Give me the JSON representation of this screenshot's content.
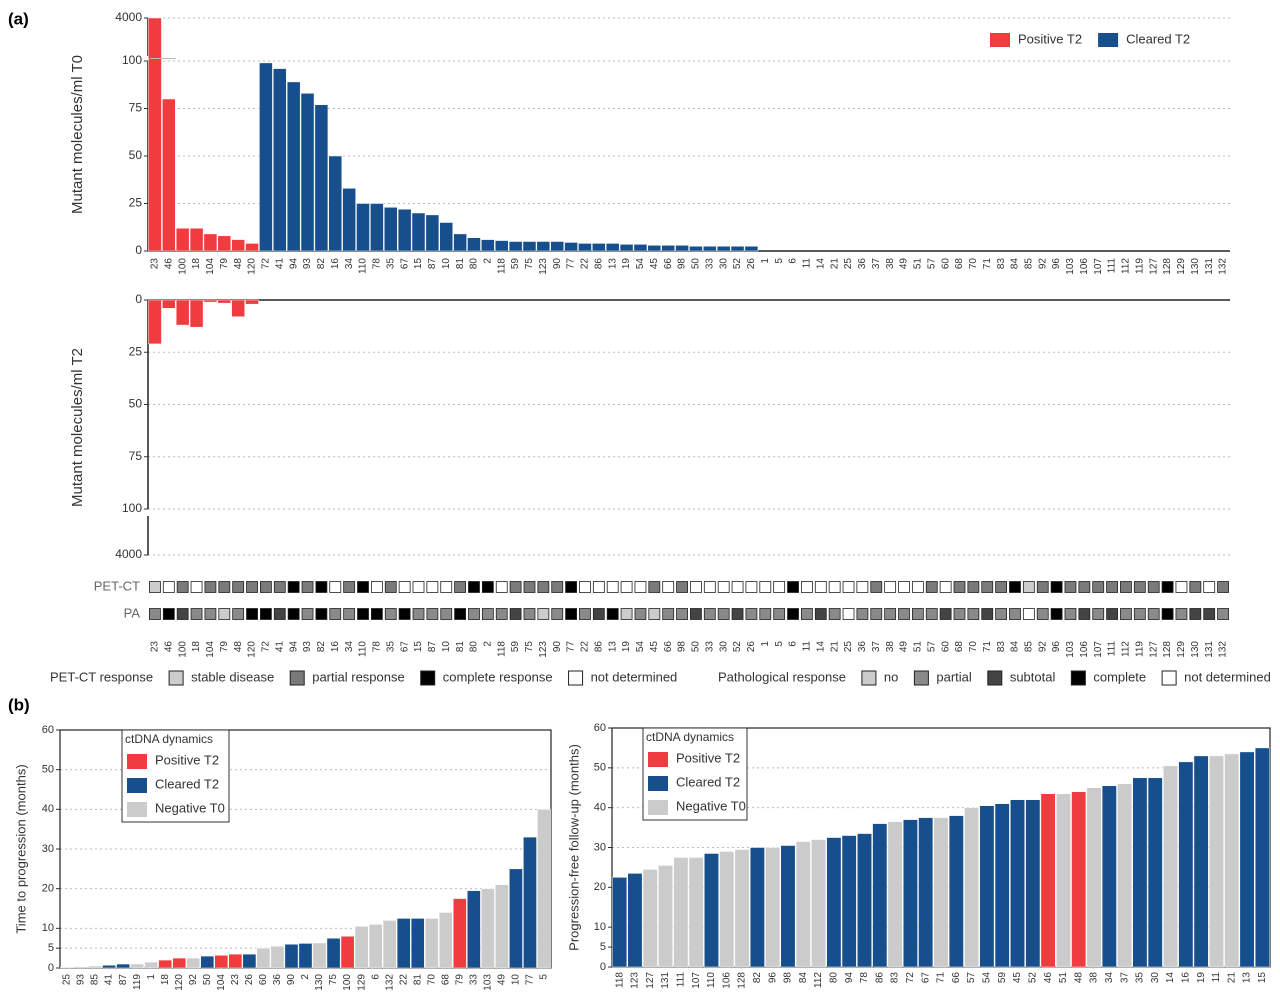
{
  "panel_labels": [
    "(a)",
    "(b)"
  ],
  "chart_data": [
    {
      "type": "bar",
      "ylabel": "Mutant molecules/ml T0",
      "categories": [
        "23",
        "46",
        "100",
        "18",
        "104",
        "79",
        "48",
        "120",
        "72",
        "41",
        "94",
        "93",
        "82",
        "16",
        "34",
        "110",
        "78",
        "35",
        "67",
        "15",
        "87",
        "10",
        "81",
        "80",
        "2",
        "118",
        "59",
        "75",
        "123",
        "90",
        "77",
        "22",
        "86",
        "13",
        "19",
        "54",
        "45",
        "66",
        "98",
        "50",
        "33",
        "30",
        "52",
        "26",
        "1",
        "5",
        "6",
        "11",
        "14",
        "21",
        "25",
        "36",
        "37",
        "38",
        "49",
        "51",
        "57",
        "60",
        "68",
        "70",
        "71",
        "83",
        "84",
        "85",
        "92",
        "96",
        "103",
        "106",
        "107",
        "111",
        "112",
        "119",
        "127",
        "128",
        "129",
        "130",
        "131",
        "132"
      ],
      "series": [
        {
          "name": "Positive T2",
          "color": "#f03c3e",
          "values": [
            4000,
            80,
            12,
            12,
            9,
            8,
            6,
            4,
            null,
            null,
            null,
            null,
            null,
            null,
            null,
            null,
            null,
            null,
            null,
            null,
            null,
            null,
            null,
            null,
            null,
            null,
            null,
            null,
            null,
            null,
            null,
            null,
            null,
            null,
            null,
            null,
            null,
            null,
            null,
            null,
            null,
            null,
            null,
            null,
            null,
            null,
            null,
            null,
            null,
            null,
            null,
            null,
            null,
            null,
            null,
            null,
            null,
            null,
            null,
            null,
            null,
            null,
            null,
            null,
            null,
            null,
            null,
            null,
            null,
            null,
            null,
            null,
            null,
            null,
            null,
            null,
            null,
            null
          ]
        },
        {
          "name": "Cleared T2",
          "color": "#174f8d",
          "values": [
            null,
            null,
            null,
            null,
            null,
            null,
            null,
            null,
            99,
            96,
            89,
            83,
            77,
            50,
            33,
            25,
            25,
            23,
            22,
            20,
            19,
            15,
            9,
            7,
            6,
            5.5,
            5,
            5,
            5,
            5,
            4.5,
            4,
            4,
            4,
            3.5,
            3.5,
            3,
            3,
            3,
            2.5,
            2.5,
            2.5,
            2.5,
            2.5,
            null,
            null,
            null,
            null,
            null,
            null,
            null,
            null,
            null,
            null,
            null,
            null,
            null,
            null,
            null,
            null,
            null,
            null,
            null,
            null,
            null,
            null,
            null,
            null,
            null,
            null,
            null,
            null,
            null,
            null,
            null,
            null,
            null,
            null
          ]
        }
      ],
      "ylim": [
        0,
        4000
      ],
      "yticks": [
        0,
        25,
        50,
        75,
        100,
        4000
      ],
      "broken_axis": true,
      "grid": true,
      "legend": "upper right"
    },
    {
      "type": "bar",
      "ylabel": "Mutant molecules/ml T2",
      "color": "#f03c3e",
      "inverted": true,
      "values": [
        21,
        4,
        12,
        13,
        1,
        1.5,
        8,
        2,
        0,
        0,
        0,
        0,
        0,
        0,
        0,
        0,
        0,
        0,
        0,
        0,
        0,
        0,
        0,
        0,
        0,
        0,
        0,
        0,
        0,
        0,
        0,
        0,
        0,
        0,
        0,
        0,
        0,
        0,
        0,
        0,
        0,
        0,
        0,
        0,
        null,
        null,
        null,
        null,
        null,
        null,
        null,
        null,
        null,
        null,
        null,
        null,
        null,
        null,
        null,
        null,
        null,
        null,
        null,
        null,
        null,
        null,
        null,
        null,
        null,
        null,
        null,
        null,
        null,
        null,
        null,
        null,
        null,
        null
      ],
      "ylim": [
        0,
        4000
      ],
      "yticks": [
        0,
        25,
        50,
        75,
        100,
        4000
      ],
      "broken_axis": true,
      "grid": true
    },
    {
      "type": "heatmap",
      "categories": [
        "23",
        "46",
        "100",
        "18",
        "104",
        "79",
        "48",
        "120",
        "72",
        "41",
        "94",
        "93",
        "82",
        "16",
        "34",
        "110",
        "78",
        "35",
        "67",
        "15",
        "87",
        "10",
        "81",
        "80",
        "2",
        "118",
        "59",
        "75",
        "123",
        "90",
        "77",
        "22",
        "86",
        "13",
        "19",
        "54",
        "45",
        "66",
        "98",
        "50",
        "33",
        "30",
        "52",
        "26",
        "1",
        "5",
        "6",
        "11",
        "14",
        "21",
        "25",
        "36",
        "37",
        "38",
        "49",
        "51",
        "57",
        "60",
        "68",
        "70",
        "71",
        "83",
        "84",
        "85",
        "92",
        "96",
        "103",
        "106",
        "107",
        "111",
        "112",
        "119",
        "127",
        "128",
        "129",
        "130",
        "131",
        "132"
      ],
      "rows": [
        {
          "name": "PET-CT",
          "legend": 0,
          "values": [
            "stable disease",
            "not determined",
            "partial response",
            "not determined",
            "partial response",
            "partial response",
            "partial response",
            "partial response",
            "partial response",
            "partial response",
            "complete response",
            "partial response",
            "complete response",
            "not determined",
            "partial response",
            "complete response",
            "not determined",
            "partial response",
            "not determined",
            "not determined",
            "not determined",
            "not determined",
            "partial response",
            "complete response",
            "complete response",
            "not determined",
            "partial response",
            "partial response",
            "partial response",
            "partial response",
            "complete response",
            "not determined",
            "not determined",
            "not determined",
            "not determined",
            "not determined",
            "partial response",
            "not determined",
            "partial response",
            "not determined",
            "not determined",
            "not determined",
            "not determined",
            "not determined",
            "not determined",
            "not determined",
            "complete response",
            "not determined",
            "not determined",
            "not determined",
            "not determined",
            "not determined",
            "partial response",
            "not determined",
            "not determined",
            "not determined",
            "partial response",
            "not determined",
            "partial response",
            "partial response",
            "partial response",
            "partial response",
            "complete response",
            "stable disease",
            "partial response",
            "complete response",
            "partial response",
            "partial response",
            "partial response",
            "partial response",
            "partial response",
            "partial response",
            "partial response",
            "complete response",
            "not determined",
            "partial response",
            "not determined",
            "partial response"
          ]
        },
        {
          "name": "PA",
          "legend": 1,
          "values": [
            "partial",
            "complete",
            "subtotal",
            "partial",
            "partial",
            "no",
            "partial",
            "complete",
            "complete",
            "subtotal",
            "complete",
            "partial",
            "complete",
            "partial",
            "partial",
            "complete",
            "complete",
            "partial",
            "complete",
            "partial",
            "partial",
            "partial",
            "complete",
            "partial",
            "partial",
            "partial",
            "subtotal",
            "partial",
            "no",
            "partial",
            "complete",
            "partial",
            "subtotal",
            "complete",
            "no",
            "partial",
            "no",
            "partial",
            "partial",
            "subtotal",
            "partial",
            "partial",
            "subtotal",
            "partial",
            "partial",
            "partial",
            "complete",
            "partial",
            "subtotal",
            "partial",
            "not determined",
            "partial",
            "partial",
            "partial",
            "partial",
            "partial",
            "partial",
            "subtotal",
            "partial",
            "partial",
            "subtotal",
            "partial",
            "partial",
            "not determined",
            "partial",
            "complete",
            "partial",
            "subtotal",
            "partial",
            "subtotal",
            "partial",
            "partial",
            "partial",
            "complete",
            "partial",
            "subtotal",
            "subtotal",
            "partial"
          ]
        }
      ],
      "legends": [
        {
          "title": "PET-CT response",
          "items": [
            {
              "label": "stable disease",
              "color": "#cccccc"
            },
            {
              "label": "partial response",
              "color": "#7a7a7a"
            },
            {
              "label": "complete response",
              "color": "#000000"
            },
            {
              "label": "not determined",
              "color": "#ffffff"
            }
          ]
        },
        {
          "title": "Pathological response",
          "items": [
            {
              "label": "no",
              "color": "#cccccc"
            },
            {
              "label": "partial",
              "color": "#8a8a8a"
            },
            {
              "label": "subtotal",
              "color": "#444444"
            },
            {
              "label": "complete",
              "color": "#000000"
            },
            {
              "label": "not determined",
              "color": "#ffffff"
            }
          ]
        }
      ]
    },
    {
      "type": "bar",
      "ylabel": "Time to progression (months)",
      "legend_title": "ctDNA dynamics",
      "legend": "upper left",
      "grid": true,
      "categories": [
        "25",
        "93",
        "85",
        "41",
        "87",
        "119",
        "1",
        "18",
        "120",
        "92",
        "50",
        "104",
        "23",
        "26",
        "60",
        "36",
        "90",
        "2",
        "130",
        "75",
        "100",
        "129",
        "6",
        "132",
        "22",
        "81",
        "70",
        "68",
        "79",
        "33",
        "103",
        "49",
        "10",
        "77",
        "5"
      ],
      "series": [
        {
          "name": "Positive T2",
          "color": "#f03c3e",
          "values": [
            null,
            null,
            null,
            null,
            null,
            null,
            null,
            2,
            2.5,
            null,
            null,
            3.2,
            3.5,
            null,
            null,
            null,
            null,
            null,
            null,
            null,
            8,
            null,
            null,
            null,
            null,
            null,
            null,
            null,
            17.5,
            null,
            null,
            null,
            null,
            null,
            null
          ]
        },
        {
          "name": "Cleared T2",
          "color": "#174f8d",
          "values": [
            null,
            null,
            null,
            0.7,
            1,
            null,
            null,
            null,
            null,
            null,
            3,
            null,
            null,
            3.5,
            null,
            null,
            6,
            6.2,
            null,
            7.5,
            null,
            null,
            null,
            null,
            12.5,
            12.5,
            null,
            null,
            null,
            19.5,
            null,
            null,
            25,
            33,
            null
          ]
        },
        {
          "name": "Negative T0",
          "color": "#cbcbcb",
          "values": [
            0.2,
            0.3,
            0.5,
            null,
            null,
            1,
            1.5,
            null,
            null,
            2.5,
            null,
            null,
            null,
            null,
            5,
            5.5,
            null,
            null,
            6.3,
            null,
            null,
            10.5,
            11,
            12,
            null,
            null,
            12.5,
            14,
            null,
            null,
            20,
            21,
            null,
            null,
            40
          ]
        }
      ],
      "ylim": [
        0,
        60
      ],
      "yticks": [
        0,
        5,
        10,
        20,
        30,
        40,
        50,
        60
      ]
    },
    {
      "type": "bar",
      "ylabel": "Progression-free follow-up (months)",
      "legend_title": "ctDNA dynamics",
      "legend": "upper left",
      "grid": true,
      "categories": [
        "118",
        "123",
        "127",
        "131",
        "111",
        "107",
        "110",
        "106",
        "128",
        "82",
        "96",
        "98",
        "84",
        "112",
        "80",
        "94",
        "78",
        "86",
        "83",
        "72",
        "67",
        "71",
        "66",
        "57",
        "54",
        "59",
        "45",
        "52",
        "46",
        "51",
        "48",
        "38",
        "34",
        "37",
        "35",
        "30",
        "14",
        "16",
        "19",
        "11",
        "21",
        "13",
        "15"
      ],
      "series": [
        {
          "name": "Positive T2",
          "color": "#f03c3e",
          "values": [
            null,
            null,
            null,
            null,
            null,
            null,
            null,
            null,
            null,
            null,
            null,
            null,
            null,
            null,
            null,
            null,
            null,
            null,
            null,
            null,
            null,
            null,
            null,
            null,
            null,
            null,
            null,
            null,
            43.5,
            null,
            44,
            null,
            null,
            null,
            null,
            null,
            null,
            null,
            null,
            null,
            null,
            null,
            null
          ]
        },
        {
          "name": "Cleared T2",
          "color": "#174f8d",
          "values": [
            22.5,
            23.5,
            null,
            null,
            null,
            null,
            28.5,
            null,
            null,
            30,
            null,
            30.5,
            null,
            null,
            32.5,
            33,
            33.5,
            36,
            null,
            37,
            37.5,
            null,
            38,
            null,
            40.5,
            41,
            42,
            42,
            null,
            null,
            null,
            null,
            45.5,
            null,
            47.5,
            47.5,
            null,
            51.5,
            53,
            null,
            null,
            54,
            55
          ]
        },
        {
          "name": "Negative T0",
          "color": "#cbcbcb",
          "values": [
            null,
            null,
            24.5,
            25.5,
            27.5,
            27.5,
            null,
            29,
            29.5,
            null,
            30,
            null,
            31.5,
            32,
            null,
            null,
            null,
            null,
            36.5,
            null,
            null,
            37.5,
            null,
            40,
            null,
            null,
            null,
            null,
            null,
            43.5,
            null,
            45,
            null,
            46,
            null,
            null,
            50.5,
            null,
            null,
            53,
            53.5,
            null,
            null
          ]
        }
      ],
      "ylim": [
        0,
        60
      ],
      "yticks": [
        0,
        5,
        10,
        20,
        30,
        40,
        50,
        60
      ]
    }
  ]
}
